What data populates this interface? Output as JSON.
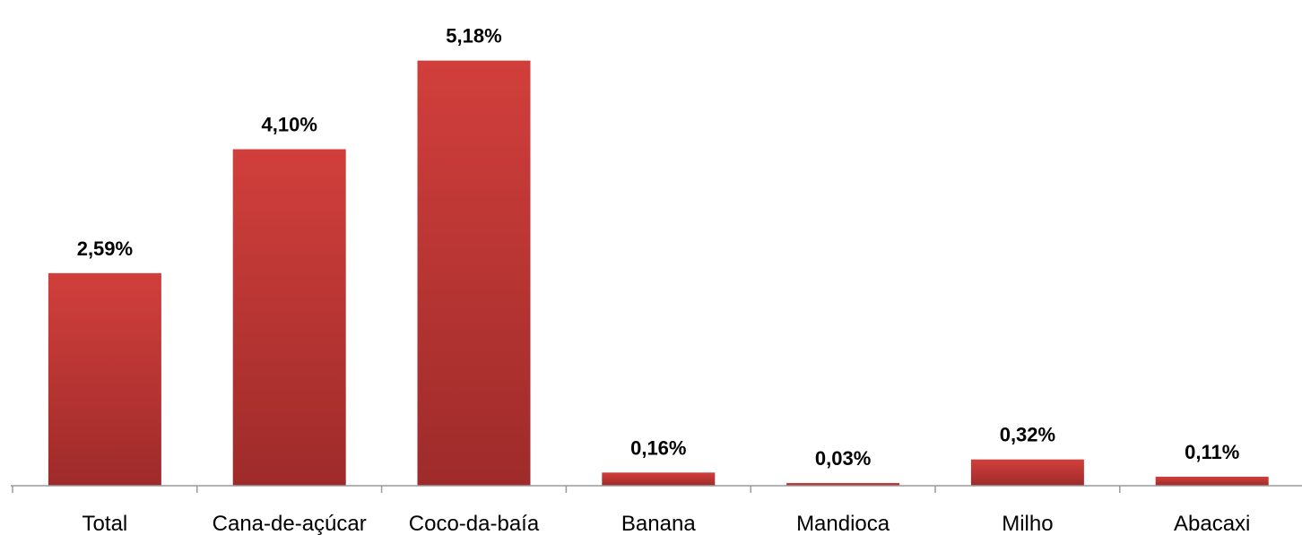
{
  "chart_data": {
    "type": "bar",
    "title": "",
    "xlabel": "",
    "ylabel": "",
    "categories": [
      "Total",
      "Cana-de-açúcar",
      "Coco-da-baía",
      "Banana",
      "Mandioca",
      "Milho",
      "Abacaxi"
    ],
    "values": [
      2.59,
      4.1,
      5.18,
      0.16,
      0.03,
      0.32,
      0.11
    ],
    "value_labels": [
      "2,59%",
      "4,10%",
      "5,18%",
      "0,16%",
      "0,03%",
      "0,32%",
      "0,11%"
    ],
    "ylim": [
      0,
      5.7
    ],
    "grid": false,
    "legend": "none",
    "colors": {
      "bar_top": "#d13f3c",
      "bar_bottom": "#9e2b2a",
      "axis": "#9a9a9a"
    }
  }
}
